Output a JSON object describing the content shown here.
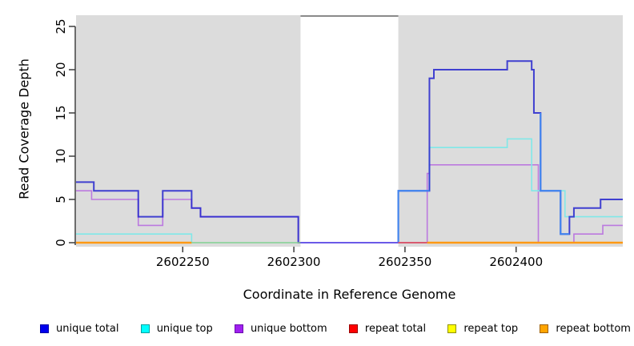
{
  "chart_data": {
    "type": "line",
    "subtype": "step-coverage",
    "title": "",
    "xlabel": "Coordinate in Reference Genome",
    "ylabel": "Read Coverage Depth",
    "xlim": [
      2602202,
      2602448
    ],
    "ylim": [
      0,
      26.5
    ],
    "x_ticks": [
      2602250,
      2602300,
      2602350,
      2602400
    ],
    "y_ticks": [
      0,
      5,
      10,
      15,
      20,
      25
    ],
    "grid": false,
    "legend_position": "bottom",
    "plot_background": "#ffffff",
    "shaded_regions": [
      {
        "name": "left-data-region",
        "x0": 2602202,
        "x1": 2602303,
        "color": "#DCDCDC"
      },
      {
        "name": "right-data-region",
        "x0": 2602347,
        "x1": 2602448,
        "color": "#DCDCDC"
      }
    ],
    "gap_region": {
      "x0": 2602303,
      "x1": 2602347,
      "cap_value": 26.2,
      "cap_color": "#8A8A8A"
    },
    "series": [
      {
        "name": "unique total",
        "color": "#2525CE",
        "opacity": 0.85,
        "width": 2,
        "draw": true,
        "points": [
          [
            2602202,
            7
          ],
          [
            2602210,
            6
          ],
          [
            2602230,
            3
          ],
          [
            2602241,
            6
          ],
          [
            2602254,
            4
          ],
          [
            2602258,
            3
          ],
          [
            2602302,
            0
          ],
          [
            2602347,
            6
          ],
          [
            2602361,
            19
          ],
          [
            2602363,
            20
          ],
          [
            2602396,
            21
          ],
          [
            2602407,
            20
          ],
          [
            2602408,
            15
          ],
          [
            2602411,
            6
          ],
          [
            2602420,
            1
          ],
          [
            2602424,
            3
          ],
          [
            2602426,
            4
          ],
          [
            2602438,
            5
          ],
          [
            2602448,
            5
          ]
        ]
      },
      {
        "name": "unique top",
        "color": "#80E8E8",
        "opacity": 1,
        "width": 1.6,
        "draw": true,
        "points": [
          [
            2602202,
            1
          ],
          [
            2602254,
            0
          ],
          [
            2602347,
            6
          ],
          [
            2602361,
            11
          ],
          [
            2602396,
            12
          ],
          [
            2602407,
            6
          ],
          [
            2602422,
            3
          ],
          [
            2602448,
            3
          ]
        ]
      },
      {
        "name": "unique bottom",
        "color": "#BB79DF",
        "opacity": 1,
        "width": 1.6,
        "draw": true,
        "points": [
          [
            2602202,
            6
          ],
          [
            2602209,
            5
          ],
          [
            2602230,
            2
          ],
          [
            2602241,
            5
          ],
          [
            2602254,
            4
          ],
          [
            2602258,
            3
          ],
          [
            2602302,
            0
          ],
          [
            2602360,
            8
          ],
          [
            2602361,
            9
          ],
          [
            2602410,
            0
          ],
          [
            2602426,
            1
          ],
          [
            2602439,
            2
          ],
          [
            2602448,
            2
          ]
        ]
      },
      {
        "name": "repeat total",
        "color": "#D85A70",
        "opacity": 1,
        "width": 2,
        "draw": false,
        "points": [
          [
            2602202,
            0
          ],
          [
            2602448,
            0
          ]
        ]
      },
      {
        "name": "repeat top",
        "color": "#E8D820",
        "opacity": 1,
        "width": 2,
        "draw": false,
        "points": [
          [
            2602202,
            0
          ],
          [
            2602448,
            0
          ]
        ]
      },
      {
        "name": "repeat bottom",
        "color": "#FF9914",
        "opacity": 1,
        "width": 2.5,
        "draw": false,
        "points": [
          [
            2602202,
            0
          ],
          [
            2602448,
            0
          ]
        ]
      }
    ],
    "baseline_segments": [
      {
        "name": "baseline-repeat-bottom-left",
        "x0": 2602202,
        "x1": 2602254,
        "color": "#FF9914",
        "width": 2.5
      },
      {
        "name": "baseline-green-blend",
        "x0": 2602254,
        "x1": 2602303,
        "color": "#8FCF8F",
        "width": 1.6
      },
      {
        "name": "baseline-gap-unique-blend",
        "x0": 2602303,
        "x1": 2602347,
        "color": "#6A5AE8",
        "width": 2
      },
      {
        "name": "baseline-repeat-total",
        "x0": 2602347,
        "x1": 2602360,
        "color": "#D85A70",
        "width": 2
      },
      {
        "name": "baseline-repeat-bottom-right",
        "x0": 2602360,
        "x1": 2602448,
        "color": "#FF9914",
        "width": 2.5
      }
    ],
    "overlay_segments": [
      {
        "name": "total-over-top-blend-1",
        "color": "#3F85F0",
        "width": 2,
        "points": [
          [
            2602347,
            0
          ],
          [
            2602347,
            6
          ],
          [
            2602361,
            6
          ]
        ]
      },
      {
        "name": "total-over-top-blend-2",
        "color": "#3F85F0",
        "width": 2,
        "points": [
          [
            2602411,
            15
          ],
          [
            2602411,
            6
          ],
          [
            2602420,
            6
          ],
          [
            2602420,
            1
          ],
          [
            2602424,
            1
          ]
        ]
      }
    ],
    "axis_color": "#3C3C3C",
    "tick_label_color": "#000000"
  },
  "legend": {
    "items": [
      {
        "label": "unique total",
        "fill": "#0000EE",
        "border": "#0000A6"
      },
      {
        "label": "unique top",
        "fill": "#00FFFF",
        "border": "#00A0A0"
      },
      {
        "label": "unique bottom",
        "fill": "#A020F0",
        "border": "#6A0DAD"
      },
      {
        "label": "repeat total",
        "fill": "#FF0000",
        "border": "#990000"
      },
      {
        "label": "repeat top",
        "fill": "#FFFF00",
        "border": "#909000"
      },
      {
        "label": "repeat bottom",
        "fill": "#FFA500",
        "border": "#A06000"
      }
    ]
  }
}
